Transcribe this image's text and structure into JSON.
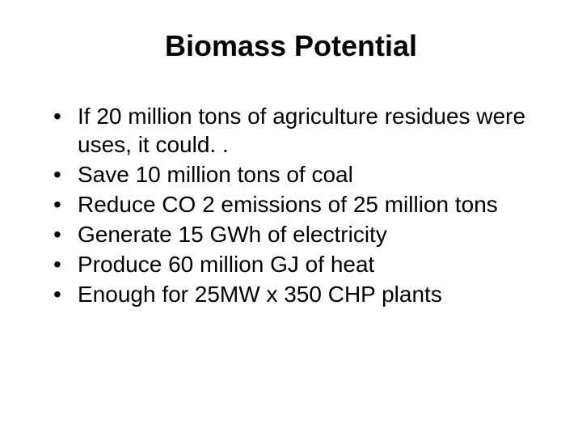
{
  "slide": {
    "title": "Biomass Potential",
    "bullets": [
      "If 20 million tons of agriculture residues were uses, it could. .",
      "Save 10 million tons of coal",
      "Reduce CO 2 emissions of 25 million tons",
      "Generate 15 GWh of electricity",
      "Produce 60 million GJ of heat",
      "Enough for 25MW x 350 CHP plants"
    ],
    "background_color": "#ffffff",
    "text_color": "#000000",
    "title_fontsize": 36,
    "bullet_fontsize": 28
  }
}
